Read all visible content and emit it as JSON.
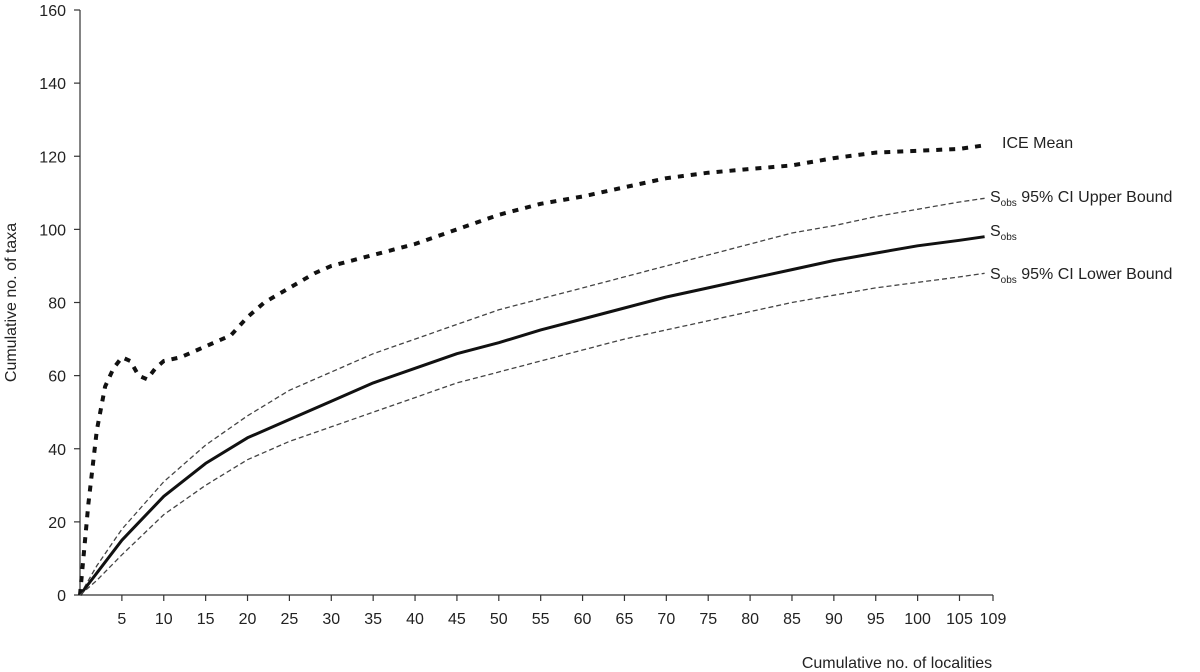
{
  "chart_data": {
    "type": "line",
    "xlabel": "Cumulative no. of localities",
    "ylabel": "Cumulative no. of taxa",
    "xlim": [
      0,
      109
    ],
    "ylim": [
      0,
      160
    ],
    "x_ticks": [
      5,
      10,
      15,
      20,
      25,
      30,
      35,
      40,
      45,
      50,
      55,
      60,
      65,
      70,
      75,
      80,
      85,
      90,
      95,
      100,
      105,
      109
    ],
    "y_ticks": [
      0,
      20,
      40,
      60,
      80,
      100,
      120,
      140,
      160
    ],
    "grid": false,
    "legend": "none (series labeled at right end of lines)",
    "series": [
      {
        "name": "ICE Mean",
        "label_main": "ICE Mean",
        "label_sub": "",
        "label_suffix": "",
        "style": "dotted-thick",
        "x": [
          0,
          1,
          2,
          3,
          4,
          5,
          6,
          7,
          8,
          9,
          10,
          12,
          14,
          16,
          18,
          20,
          22,
          25,
          28,
          30,
          35,
          40,
          45,
          50,
          55,
          60,
          65,
          70,
          75,
          80,
          85,
          90,
          95,
          100,
          105,
          108
        ],
        "y": [
          0,
          25,
          45,
          57,
          62,
          65,
          64,
          60,
          59,
          62,
          64,
          65,
          67,
          69,
          71,
          76,
          80,
          84,
          88,
          90,
          93,
          96,
          100,
          104,
          107,
          109,
          111.5,
          114,
          115.5,
          116.5,
          117.5,
          119.5,
          121,
          121.5,
          122,
          123
        ]
      },
      {
        "name": "Sobs 95% CI Upper Bound",
        "label_main": "S",
        "label_sub": "obs",
        "label_suffix": " 95% CI Upper Bound",
        "style": "dashed-thin",
        "x": [
          0,
          1,
          2,
          5,
          10,
          15,
          20,
          25,
          30,
          35,
          40,
          45,
          50,
          55,
          60,
          65,
          70,
          75,
          80,
          85,
          90,
          95,
          100,
          105,
          108
        ],
        "y": [
          0,
          4,
          8,
          18,
          31,
          41,
          49,
          56,
          61,
          66,
          70,
          74,
          78,
          81,
          84,
          87,
          90,
          93,
          96,
          99,
          101,
          103.5,
          105.5,
          107.5,
          108.5
        ]
      },
      {
        "name": "Sobs",
        "label_main": "S",
        "label_sub": "obs",
        "label_suffix": "",
        "style": "solid-thick",
        "x": [
          0,
          1,
          2,
          5,
          10,
          15,
          20,
          25,
          30,
          35,
          40,
          45,
          50,
          55,
          60,
          65,
          70,
          75,
          80,
          85,
          90,
          95,
          100,
          105,
          108
        ],
        "y": [
          0,
          3,
          6,
          15,
          27,
          36,
          43,
          48,
          53,
          58,
          62,
          66,
          69,
          72.5,
          75.5,
          78.5,
          81.5,
          84,
          86.5,
          89,
          91.5,
          93.5,
          95.5,
          97,
          98
        ]
      },
      {
        "name": "Sobs 95% CI Lower Bound",
        "label_main": "S",
        "label_sub": "obs",
        "label_suffix": " 95% CI Lower Bound",
        "style": "dashed-thin",
        "x": [
          0,
          1,
          2,
          5,
          10,
          15,
          20,
          25,
          30,
          35,
          40,
          45,
          50,
          55,
          60,
          65,
          70,
          75,
          80,
          85,
          90,
          95,
          100,
          105,
          108
        ],
        "y": [
          0,
          2,
          4,
          11,
          22,
          30,
          37,
          42,
          46,
          50,
          54,
          58,
          61,
          64,
          67,
          70,
          72.5,
          75,
          77.5,
          80,
          82,
          84,
          85.5,
          87,
          88
        ]
      }
    ]
  }
}
